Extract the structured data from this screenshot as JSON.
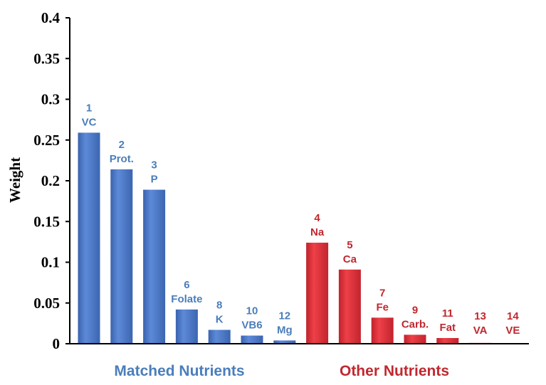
{
  "chart_data": {
    "type": "bar",
    "ylabel": "Weight",
    "ylim": [
      0,
      0.4
    ],
    "yticks": [
      "0",
      "0.05",
      "0.1",
      "0.15",
      "0.2",
      "0.25",
      "0.3",
      "0.35",
      "0.4"
    ],
    "grid": false,
    "legend": "none",
    "groups": [
      {
        "name": "Matched Nutrients",
        "color": "#4472C4",
        "label_color": "#4A7EBB",
        "bars": [
          {
            "rank": "1",
            "nutrient": "VC",
            "value": 0.259
          },
          {
            "rank": "2",
            "nutrient": "Prot.",
            "value": 0.214
          },
          {
            "rank": "3",
            "nutrient": "P",
            "value": 0.189
          },
          {
            "rank": "6",
            "nutrient": "Folate",
            "value": 0.042
          },
          {
            "rank": "8",
            "nutrient": "K",
            "value": 0.017
          },
          {
            "rank": "10",
            "nutrient": "VB6",
            "value": 0.01
          },
          {
            "rank": "12",
            "nutrient": "Mg",
            "value": 0.004
          }
        ]
      },
      {
        "name": "Other Nutrients",
        "color": "#D92B35",
        "label_color": "#C0282F",
        "bars": [
          {
            "rank": "4",
            "nutrient": "Na",
            "value": 0.124
          },
          {
            "rank": "5",
            "nutrient": "Ca",
            "value": 0.091
          },
          {
            "rank": "7",
            "nutrient": "Fe",
            "value": 0.032
          },
          {
            "rank": "9",
            "nutrient": "Carb.",
            "value": 0.011
          },
          {
            "rank": "11",
            "nutrient": "Fat",
            "value": 0.007
          },
          {
            "rank": "13",
            "nutrient": "VA",
            "value": 0.001
          },
          {
            "rank": "14",
            "nutrient": "VE",
            "value": 0.0005
          }
        ]
      }
    ]
  }
}
